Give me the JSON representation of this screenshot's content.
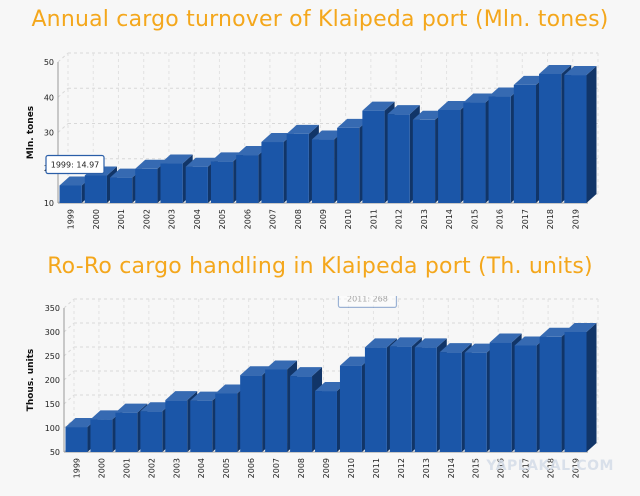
{
  "chart_data": [
    {
      "type": "bar",
      "title": "Annual cargo turnover of Klaipeda port (Mln. tones)",
      "ylabel": "Mln. tones",
      "ylim": [
        10,
        50
      ],
      "yticks": [
        10,
        20,
        30,
        40,
        50
      ],
      "grid": true,
      "categories": [
        "1999",
        "2000",
        "2001",
        "2002",
        "2003",
        "2004",
        "2005",
        "2006",
        "2007",
        "2008",
        "2009",
        "2010",
        "2011",
        "2012",
        "2013",
        "2014",
        "2015",
        "2016",
        "2017",
        "2018",
        "2019"
      ],
      "values": [
        14.97,
        17.8,
        17.2,
        19.7,
        21.2,
        20.3,
        21.8,
        23.6,
        27.3,
        29.6,
        28.0,
        31.3,
        36.2,
        35.2,
        33.6,
        36.4,
        38.5,
        40.2,
        43.5,
        46.6,
        46.3
      ],
      "tooltip": "1999: 14.97",
      "color": "#1b56a8"
    },
    {
      "type": "bar",
      "title": "Ro-Ro cargo handling in Klaipeda port (Th. units)",
      "ylabel": "Thous. units",
      "ylim": [
        50,
        350
      ],
      "yticks": [
        50,
        100,
        150,
        200,
        250,
        300,
        350
      ],
      "grid": true,
      "categories": [
        "1999",
        "2000",
        "2001",
        "2002",
        "2003",
        "2004",
        "2005",
        "2006",
        "2007",
        "2008",
        "2009",
        "2010",
        "2011",
        "2012",
        "2013",
        "2014",
        "2015",
        "2016",
        "2017",
        "2018",
        "2019"
      ],
      "values": [
        102,
        118,
        132,
        135,
        158,
        157,
        172,
        210,
        222,
        208,
        177,
        230,
        268,
        270,
        268,
        258,
        257,
        278,
        272,
        290,
        300
      ],
      "tooltip": "2011: 268",
      "color": "#1b56a8"
    }
  ],
  "watermark": "YAPLAKAL.COM"
}
